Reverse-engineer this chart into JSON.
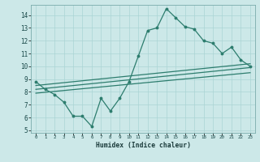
{
  "xlabel": "Humidex (Indice chaleur)",
  "xlim": [
    -0.5,
    23.5
  ],
  "ylim": [
    4.8,
    14.8
  ],
  "yticks": [
    5,
    6,
    7,
    8,
    9,
    10,
    11,
    12,
    13,
    14
  ],
  "xticks": [
    0,
    1,
    2,
    3,
    4,
    5,
    6,
    7,
    8,
    9,
    10,
    11,
    12,
    13,
    14,
    15,
    16,
    17,
    18,
    19,
    20,
    21,
    22,
    23
  ],
  "bg_color": "#cce8e8",
  "grid_color": "#aad4d4",
  "line_color": "#2d7d6e",
  "line1_x": [
    0,
    1,
    2,
    3,
    4,
    5,
    6,
    7,
    8,
    9,
    10,
    11,
    12,
    13,
    14,
    15,
    16,
    17,
    18,
    19,
    20,
    21,
    22,
    23
  ],
  "line1_y": [
    8.8,
    8.2,
    7.8,
    7.2,
    6.1,
    6.1,
    5.3,
    7.5,
    6.5,
    7.5,
    8.8,
    10.8,
    12.8,
    13.0,
    14.5,
    13.8,
    13.1,
    12.9,
    12.0,
    11.8,
    11.0,
    11.5,
    10.5,
    10.0
  ],
  "line2_x": [
    0,
    23
  ],
  "line2_y": [
    8.5,
    10.2
  ],
  "line3_x": [
    0,
    23
  ],
  "line3_y": [
    8.2,
    9.9
  ],
  "line4_x": [
    0,
    23
  ],
  "line4_y": [
    7.9,
    9.5
  ]
}
